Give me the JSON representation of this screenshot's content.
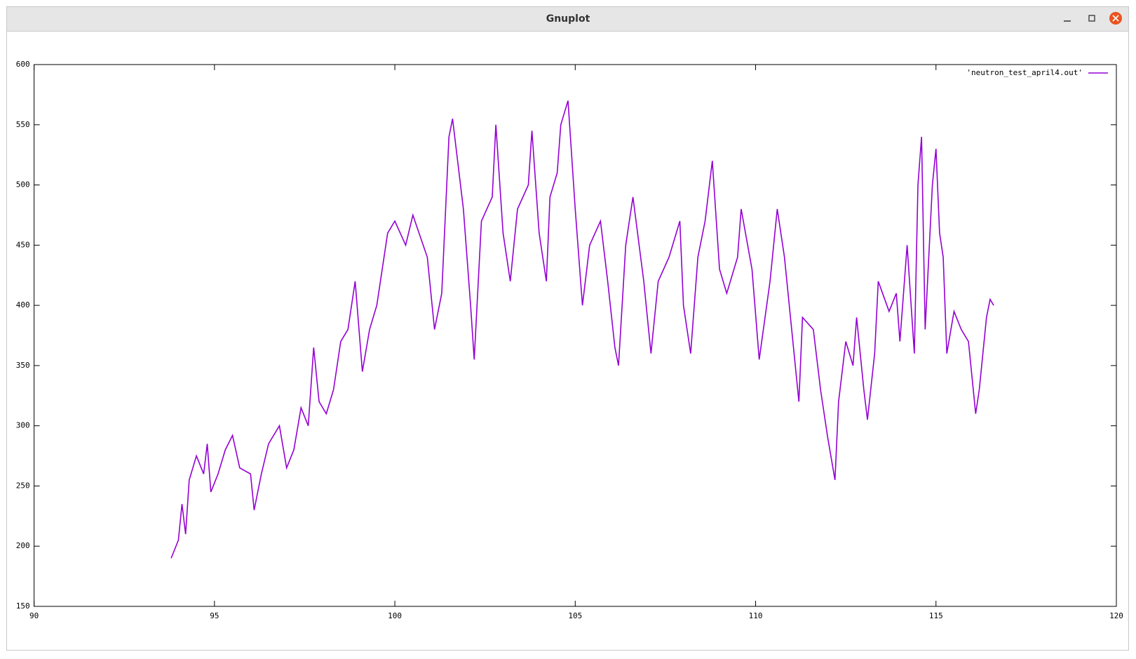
{
  "window": {
    "title": "Gnuplot"
  },
  "chart_data": {
    "type": "line",
    "x": [
      93.8,
      94.0,
      94.1,
      94.2,
      94.3,
      94.5,
      94.7,
      94.8,
      94.9,
      95.1,
      95.3,
      95.5,
      95.7,
      96.0,
      96.1,
      96.3,
      96.5,
      96.8,
      97.0,
      97.2,
      97.4,
      97.6,
      97.75,
      97.9,
      98.1,
      98.3,
      98.5,
      98.7,
      98.9,
      99.1,
      99.3,
      99.5,
      99.8,
      100.0,
      100.3,
      100.5,
      100.9,
      101.1,
      101.3,
      101.5,
      101.6,
      101.9,
      102.1,
      102.2,
      102.4,
      102.7,
      102.8,
      103.0,
      103.2,
      103.4,
      103.7,
      103.8,
      104.0,
      104.2,
      104.3,
      104.5,
      104.6,
      104.8,
      105.0,
      105.2,
      105.4,
      105.7,
      105.9,
      106.1,
      106.2,
      106.4,
      106.6,
      106.9,
      107.1,
      107.3,
      107.6,
      107.9,
      108.0,
      108.2,
      108.4,
      108.6,
      108.8,
      109.0,
      109.2,
      109.5,
      109.6,
      109.9,
      110.1,
      110.4,
      110.6,
      110.8,
      111.0,
      111.2,
      111.3,
      111.6,
      111.8,
      112.0,
      112.2,
      112.3,
      112.5,
      112.7,
      112.8,
      113.0,
      113.1,
      113.3,
      113.4,
      113.7,
      113.9,
      114.0,
      114.2,
      114.4,
      114.5,
      114.6,
      114.7,
      114.9,
      115.0,
      115.1,
      115.2,
      115.3,
      115.5,
      115.7,
      115.9,
      116.1,
      116.2,
      116.4,
      116.5,
      116.6
    ],
    "series": [
      {
        "name": "'neutron_test_april4.out'",
        "color": "#9400d3",
        "values": [
          190,
          205,
          235,
          210,
          255,
          275,
          260,
          285,
          245,
          260,
          280,
          292,
          265,
          260,
          230,
          260,
          285,
          300,
          265,
          280,
          315,
          300,
          365,
          320,
          310,
          330,
          370,
          380,
          420,
          345,
          380,
          400,
          460,
          470,
          450,
          475,
          440,
          380,
          410,
          540,
          555,
          480,
          400,
          355,
          470,
          490,
          550,
          460,
          420,
          480,
          500,
          545,
          460,
          420,
          490,
          510,
          550,
          570,
          480,
          400,
          450,
          470,
          420,
          365,
          350,
          450,
          490,
          420,
          360,
          420,
          440,
          470,
          400,
          360,
          440,
          470,
          520,
          430,
          410,
          440,
          480,
          430,
          355,
          420,
          480,
          440,
          380,
          320,
          390,
          380,
          330,
          290,
          255,
          320,
          370,
          350,
          390,
          330,
          305,
          360,
          420,
          395,
          410,
          370,
          450,
          360,
          500,
          540,
          380,
          500,
          530,
          460,
          440,
          360,
          395,
          380,
          370,
          310,
          330,
          390,
          405,
          400
        ]
      }
    ],
    "xlim": [
      90,
      120
    ],
    "xticks": [
      90,
      95,
      100,
      105,
      110,
      115,
      120
    ],
    "ylim": [
      150,
      600
    ],
    "yticks": [
      150,
      200,
      250,
      300,
      350,
      400,
      450,
      500,
      550,
      600
    ],
    "legend": "top-right"
  }
}
